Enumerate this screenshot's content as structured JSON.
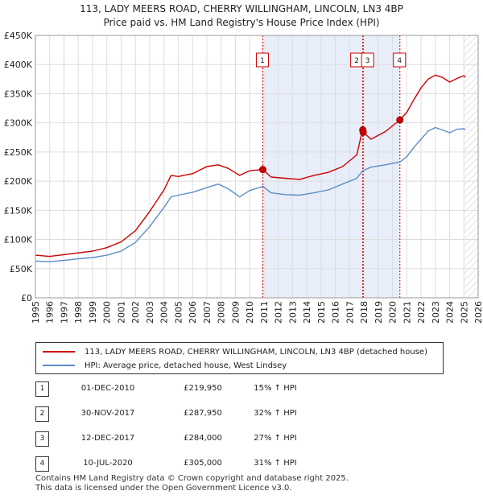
{
  "chart_data": {
    "type": "line",
    "title": "113, LADY MEERS ROAD, CHERRY WILLINGHAM, LINCOLN, LN3 4BP",
    "subtitle": "Price paid vs. HM Land Registry's House Price Index (HPI)",
    "xlim": [
      1995,
      2026
    ],
    "ylim": [
      0,
      450000
    ],
    "x_ticks": [
      "1995",
      "1996",
      "1997",
      "1998",
      "1999",
      "2000",
      "2001",
      "2002",
      "2003",
      "2004",
      "2005",
      "2006",
      "2007",
      "2008",
      "2009",
      "2010",
      "2011",
      "2012",
      "2013",
      "2014",
      "2015",
      "2016",
      "2017",
      "2018",
      "2019",
      "2020",
      "2021",
      "2022",
      "2023",
      "2024",
      "2025",
      "2026"
    ],
    "y_ticks": [
      {
        "value": 0,
        "label": "£0"
      },
      {
        "value": 50000,
        "label": "£50K"
      },
      {
        "value": 100000,
        "label": "£100K"
      },
      {
        "value": 150000,
        "label": "£150K"
      },
      {
        "value": 200000,
        "label": "£200K"
      },
      {
        "value": 250000,
        "label": "£250K"
      },
      {
        "value": 300000,
        "label": "£300K"
      },
      {
        "value": 350000,
        "label": "£350K"
      },
      {
        "value": 400000,
        "label": "£400K"
      },
      {
        "value": 450000,
        "label": "£450K"
      }
    ],
    "grid": true,
    "shaded_periods": [
      [
        2010.92,
        2017.92
      ],
      [
        2017.95,
        2020.52
      ]
    ],
    "forecast_from": 2025.0,
    "series": [
      {
        "name": "113, LADY MEERS ROAD, CHERRY WILLINGHAM, LINCOLN, LN3 4BP (detached house)",
        "color": "#cc0000",
        "points": [
          [
            1995.0,
            73000
          ],
          [
            1996.0,
            71000
          ],
          [
            1997.0,
            74000
          ],
          [
            1998.0,
            77000
          ],
          [
            1999.0,
            80000
          ],
          [
            2000.0,
            86000
          ],
          [
            2001.0,
            96000
          ],
          [
            2002.0,
            115000
          ],
          [
            2003.0,
            148000
          ],
          [
            2004.0,
            185000
          ],
          [
            2004.5,
            210000
          ],
          [
            2005.0,
            208000
          ],
          [
            2006.0,
            213000
          ],
          [
            2007.0,
            225000
          ],
          [
            2007.8,
            228000
          ],
          [
            2008.5,
            222000
          ],
          [
            2009.3,
            210000
          ],
          [
            2010.0,
            218000
          ],
          [
            2010.92,
            219950
          ],
          [
            2011.5,
            207000
          ],
          [
            2012.5,
            205000
          ],
          [
            2013.5,
            203000
          ],
          [
            2014.5,
            210000
          ],
          [
            2015.5,
            215000
          ],
          [
            2016.5,
            225000
          ],
          [
            2017.5,
            245000
          ],
          [
            2017.9,
            287950
          ],
          [
            2017.95,
            284000
          ],
          [
            2018.5,
            272000
          ],
          [
            2019.5,
            285000
          ],
          [
            2020.52,
            305000
          ],
          [
            2021.0,
            318000
          ],
          [
            2021.5,
            340000
          ],
          [
            2022.0,
            360000
          ],
          [
            2022.5,
            375000
          ],
          [
            2023.0,
            382000
          ],
          [
            2023.5,
            378000
          ],
          [
            2024.0,
            370000
          ],
          [
            2024.5,
            376000
          ],
          [
            2025.0,
            381000
          ],
          [
            2025.1,
            378000
          ]
        ],
        "sales": [
          [
            2010.92,
            219950
          ],
          [
            2017.92,
            287950
          ],
          [
            2017.95,
            284000
          ],
          [
            2020.52,
            305000
          ]
        ]
      },
      {
        "name": "HPI: Average price, detached house, West Lindsey",
        "color": "#5b8ec9",
        "points": [
          [
            1995.0,
            63000
          ],
          [
            1996.0,
            62000
          ],
          [
            1997.0,
            64000
          ],
          [
            1998.0,
            67000
          ],
          [
            1999.0,
            69000
          ],
          [
            2000.0,
            73000
          ],
          [
            2001.0,
            80000
          ],
          [
            2002.0,
            95000
          ],
          [
            2003.0,
            122000
          ],
          [
            2004.0,
            155000
          ],
          [
            2004.5,
            173000
          ],
          [
            2005.0,
            176000
          ],
          [
            2006.0,
            181000
          ],
          [
            2007.0,
            189000
          ],
          [
            2007.8,
            195000
          ],
          [
            2008.5,
            187000
          ],
          [
            2009.3,
            173000
          ],
          [
            2010.0,
            184000
          ],
          [
            2010.92,
            191000
          ],
          [
            2011.5,
            180000
          ],
          [
            2012.5,
            177000
          ],
          [
            2013.5,
            176000
          ],
          [
            2014.5,
            180000
          ],
          [
            2015.5,
            185000
          ],
          [
            2016.5,
            195000
          ],
          [
            2017.5,
            205000
          ],
          [
            2017.92,
            218000
          ],
          [
            2018.5,
            224000
          ],
          [
            2019.5,
            228000
          ],
          [
            2020.52,
            233000
          ],
          [
            2021.0,
            242000
          ],
          [
            2021.5,
            258000
          ],
          [
            2022.0,
            272000
          ],
          [
            2022.5,
            286000
          ],
          [
            2023.0,
            292000
          ],
          [
            2023.5,
            288000
          ],
          [
            2024.0,
            283000
          ],
          [
            2024.5,
            289000
          ],
          [
            2025.0,
            290000
          ],
          [
            2025.1,
            288000
          ]
        ]
      }
    ],
    "markers": [
      {
        "label": "1",
        "x": 2010.92
      },
      {
        "label": "2",
        "x": 2017.92
      },
      {
        "label": "3",
        "x": 2017.95
      },
      {
        "label": "4",
        "x": 2020.52
      }
    ]
  },
  "legend": {
    "items": [
      {
        "label": "113, LADY MEERS ROAD, CHERRY WILLINGHAM, LINCOLN, LN3 4BP (detached house)",
        "color": "#cc0000"
      },
      {
        "label": "HPI: Average price, detached house, West Lindsey",
        "color": "#5b8ec9"
      }
    ]
  },
  "transactions": [
    {
      "num": "1",
      "date": "01-DEC-2010",
      "price": "£219,950",
      "hpi": "15% ↑ HPI"
    },
    {
      "num": "2",
      "date": "30-NOV-2017",
      "price": "£287,950",
      "hpi": "32% ↑ HPI"
    },
    {
      "num": "3",
      "date": "12-DEC-2017",
      "price": "£284,000",
      "hpi": "27% ↑ HPI"
    },
    {
      "num": "4",
      "date": "10-JUL-2020",
      "price": "£305,000",
      "hpi": "31% ↑ HPI"
    }
  ],
  "footer": {
    "line1": "Contains HM Land Registry data © Crown copyright and database right 2025.",
    "line2": "This data is licensed under the Open Government Licence v3.0."
  }
}
